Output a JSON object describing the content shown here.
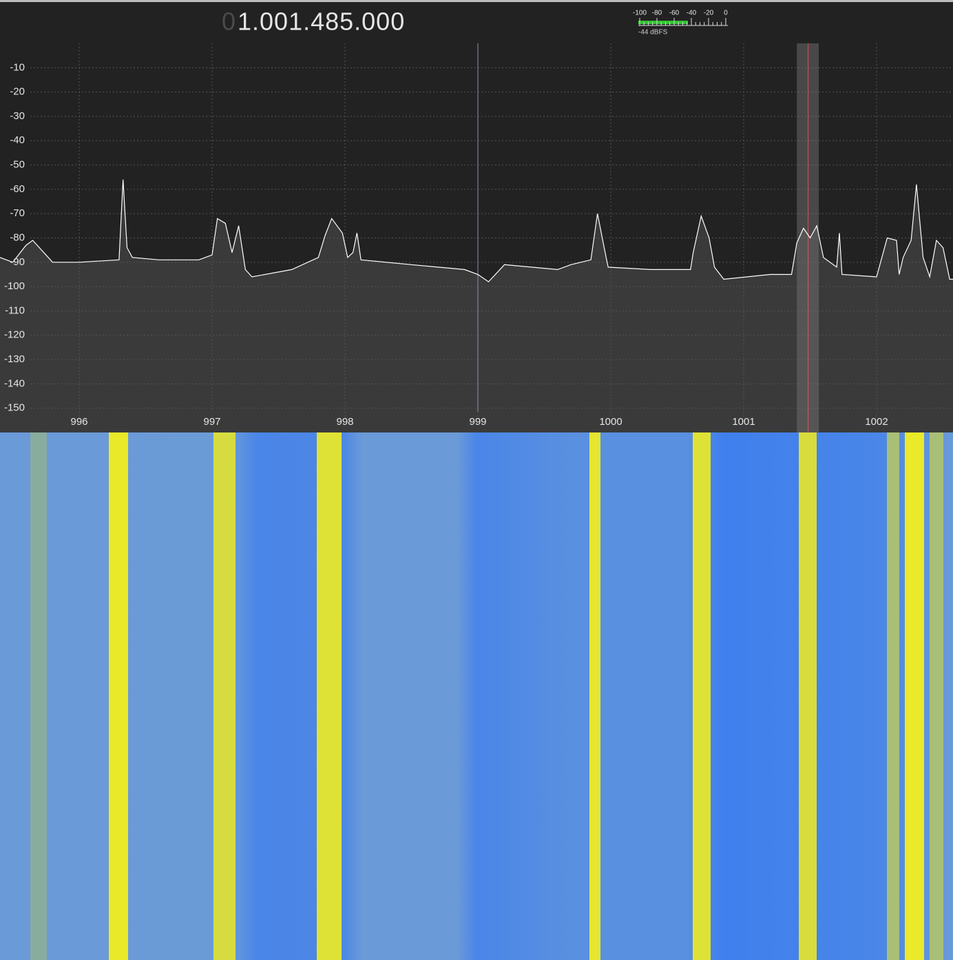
{
  "frequency_display": {
    "leading": "0",
    "digits": "1.001.485.000"
  },
  "level_meter": {
    "ticks": [
      -100,
      -80,
      -60,
      -40,
      -20,
      0
    ],
    "xlim": [
      -100,
      0
    ],
    "value": -44,
    "value_label": "-44 dBFS"
  },
  "chart_data": {
    "type": "line",
    "color": "#ffffff",
    "grid": true,
    "x": [
      995.404,
      995.5,
      995.6,
      995.65,
      995.75,
      995.8,
      996,
      996.3,
      996.33,
      996.36,
      996.4,
      996.6,
      996.9,
      997,
      997.04,
      997.1,
      997.15,
      997.2,
      997.25,
      997.3,
      997.6,
      997.8,
      997.85,
      997.9,
      997.98,
      998.02,
      998.06,
      998.09,
      998.12,
      998.5,
      998.9,
      999,
      999.08,
      999.2,
      999.6,
      999.7,
      999.85,
      999.9,
      999.95,
      999.98,
      1000.3,
      1000.6,
      1000.62,
      1000.68,
      1000.74,
      1000.78,
      1000.85,
      1001.2,
      1001.36,
      1001.4,
      1001.45,
      1001.5,
      1001.55,
      1001.6,
      1001.7,
      1001.72,
      1001.74,
      1002,
      1002.08,
      1002.15,
      1002.17,
      1002.2,
      1002.26,
      1002.3,
      1002.35,
      1002.4,
      1002.45,
      1002.5,
      1002.55,
      1002.575
    ],
    "values": [
      -88,
      -90,
      -83,
      -81,
      -87,
      -90,
      -90,
      -89,
      -56,
      -84,
      -88,
      -89,
      -89,
      -87,
      -72,
      -74,
      -86,
      -75,
      -93,
      -96,
      -93,
      -88,
      -79,
      -72,
      -78,
      -88,
      -86,
      -78,
      -89,
      -91,
      -93,
      -95,
      -98,
      -91,
      -93,
      -91,
      -89,
      -70,
      -84,
      -92,
      -93,
      -93,
      -86,
      -71,
      -80,
      -92,
      -97,
      -95,
      -95,
      -82,
      -76,
      -80,
      -75,
      -88,
      -92,
      -78,
      -95,
      -96,
      -80,
      -81,
      -95,
      -88,
      -81,
      -58,
      -88,
      -96,
      -81,
      -84,
      -97,
      -97
    ],
    "xlim": [
      995.404,
      1002.575
    ],
    "ylim": [
      -160,
      0
    ],
    "yticks": [
      -10,
      -20,
      -30,
      -40,
      -50,
      -60,
      -70,
      -80,
      -90,
      -100,
      -110,
      -120,
      -130,
      -140,
      -150
    ],
    "xticks": [
      996,
      997,
      998,
      999,
      1000,
      1001,
      1002
    ],
    "center_frequency": 999,
    "tuned_frequency": 1001.485,
    "filter": [
      1001.4,
      1001.565
    ]
  }
}
